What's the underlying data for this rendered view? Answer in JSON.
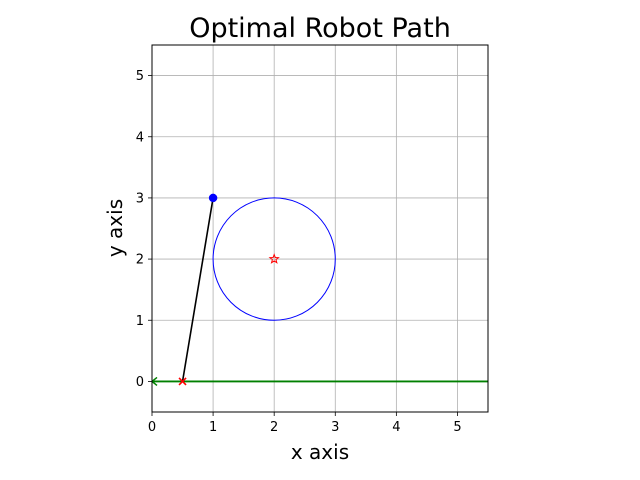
{
  "chart_data": {
    "type": "scatter",
    "title": "Optimal Robot Path",
    "xlabel": "x axis",
    "ylabel": "y axis",
    "xlim": [
      0,
      5.5
    ],
    "ylim": [
      -0.5,
      5.5
    ],
    "xticks": [
      "0",
      "1",
      "2",
      "3",
      "4",
      "5"
    ],
    "yticks": [
      "0",
      "1",
      "2",
      "3",
      "4",
      "5"
    ],
    "grid": true,
    "legend": "none",
    "obstacle": {
      "shape": "circle",
      "center": [
        2,
        2
      ],
      "radius": 1,
      "color": "#0000ff"
    },
    "goal_point": {
      "x": 2,
      "y": 2,
      "marker": "star",
      "color": "#ff0000"
    },
    "start_point": {
      "x": 1,
      "y": 3,
      "marker": "circle",
      "color": "#0000ff"
    },
    "path": {
      "x": [
        1,
        0.5
      ],
      "y": [
        3,
        0
      ],
      "color": "#000000"
    },
    "waypoint": {
      "x": 0.5,
      "y": 0,
      "marker": "x",
      "color": "#ff0000"
    },
    "horizontal_line": {
      "y": 0,
      "x_from": 0,
      "x_to": 5.5,
      "color": "#008000",
      "start_marker": "<"
    }
  }
}
